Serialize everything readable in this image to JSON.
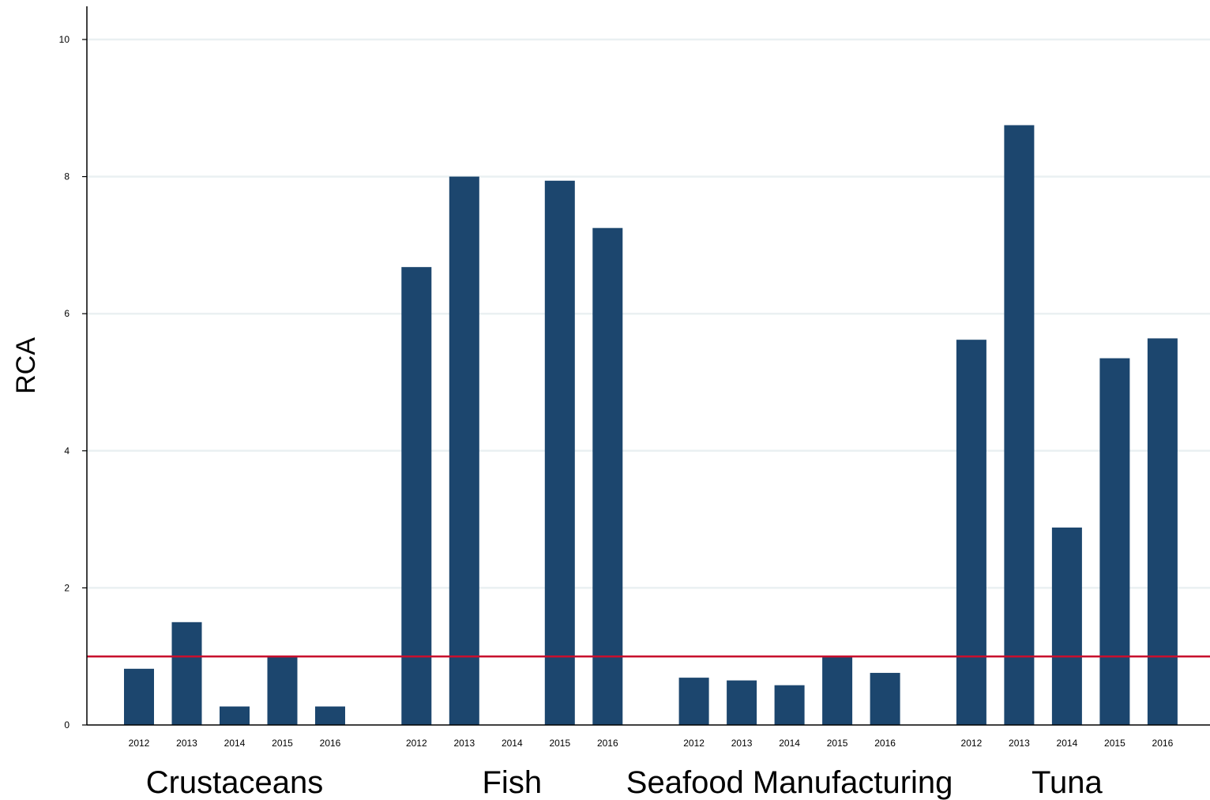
{
  "chart_data": {
    "type": "bar",
    "ylabel": "RCA",
    "xlabel": "",
    "ylim": [
      0,
      10.5
    ],
    "yticks": [
      0,
      2,
      4,
      6,
      8,
      10
    ],
    "grid": true,
    "reference_line": {
      "value": 1,
      "color": "#c8102e"
    },
    "bar_color": "#1c466e",
    "grid_color": "#eaf0f2",
    "groups": [
      {
        "name": "Crustaceans",
        "categories": [
          "2012",
          "2013",
          "2014",
          "2015",
          "2016"
        ],
        "values": [
          0.82,
          1.5,
          0.27,
          1.0,
          0.27
        ]
      },
      {
        "name": "Fish",
        "categories": [
          "2012",
          "2013",
          "2014",
          "2015",
          "2016"
        ],
        "values": [
          6.68,
          8.0,
          0,
          7.94,
          7.25
        ]
      },
      {
        "name": "Seafood Manufacturing",
        "categories": [
          "2012",
          "2013",
          "2014",
          "2015",
          "2016"
        ],
        "values": [
          0.69,
          0.65,
          0.58,
          1.0,
          0.76
        ]
      },
      {
        "name": "Tuna",
        "categories": [
          "2012",
          "2013",
          "2014",
          "2015",
          "2016"
        ],
        "values": [
          5.62,
          8.75,
          2.88,
          5.35,
          5.64
        ]
      }
    ]
  }
}
